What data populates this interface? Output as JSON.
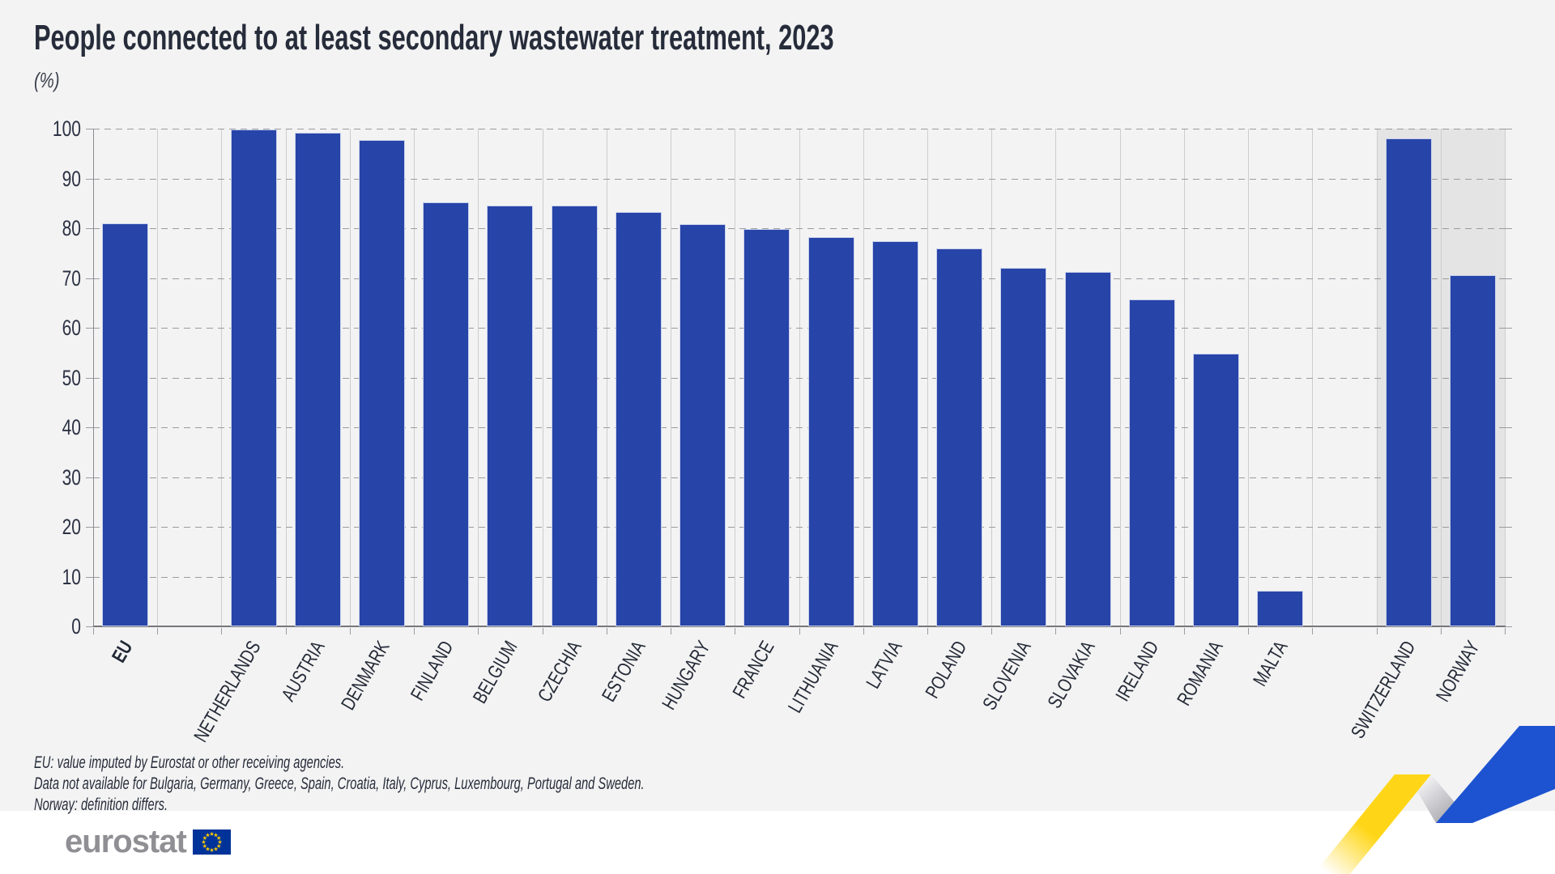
{
  "title": "People connected to at least secondary wastewater treatment, 2023",
  "unit_label": "(%)",
  "chart_data": {
    "type": "bar",
    "title": "People connected to at least secondary wastewater treatment, 2023",
    "ylabel": "(%)",
    "ylim": [
      0,
      100
    ],
    "ytick_step": 10,
    "grid": "horizontal-dashed",
    "legend": "none",
    "categories": [
      "EU",
      "NETHERLANDS",
      "AUSTRIA",
      "DENMARK",
      "FINLAND",
      "BELGIUM",
      "CZECHIA",
      "ESTONIA",
      "HUNGARY",
      "FRANCE",
      "LITHUANIA",
      "LATVIA",
      "POLAND",
      "SLOVENIA",
      "SLOVAKIA",
      "IRELAND",
      "ROMANIA",
      "MALTA",
      "SWITZERLAND",
      "NORWAY"
    ],
    "values": [
      81,
      99.8,
      99.2,
      97.8,
      85.2,
      84.5,
      84.5,
      83.2,
      80.8,
      79.8,
      78.2,
      77.4,
      76,
      72,
      71.2,
      65.7,
      54.8,
      7.2,
      98,
      70.5
    ],
    "bold_categories": [
      "EU"
    ],
    "gap_after_categories": [
      "EU",
      "MALTA"
    ],
    "shaded_categories": [
      "SWITZERLAND",
      "NORWAY"
    ],
    "bar_color": "#2744a8",
    "shaded_background_color": "#e4e4e4"
  },
  "footnotes": [
    "EU: value imputed by Eurostat or other receiving agencies.",
    "Data not available for Bulgaria, Germany, Greece, Spain, Croatia, Italy, Cyprus, Luxembourg, Portugal and Sweden.",
    "Norway: definition differs."
  ],
  "logo": {
    "text": "eurostat"
  },
  "colors": {
    "background": "#f3f3f3",
    "footer_background": "#ffffff",
    "flag_blue": "#003399",
    "flag_stars": "#ffcc00",
    "ribbon_yellow": "#ffd617",
    "ribbon_silver": "#9b9ba2",
    "ribbon_blue": "#1d53d0"
  }
}
